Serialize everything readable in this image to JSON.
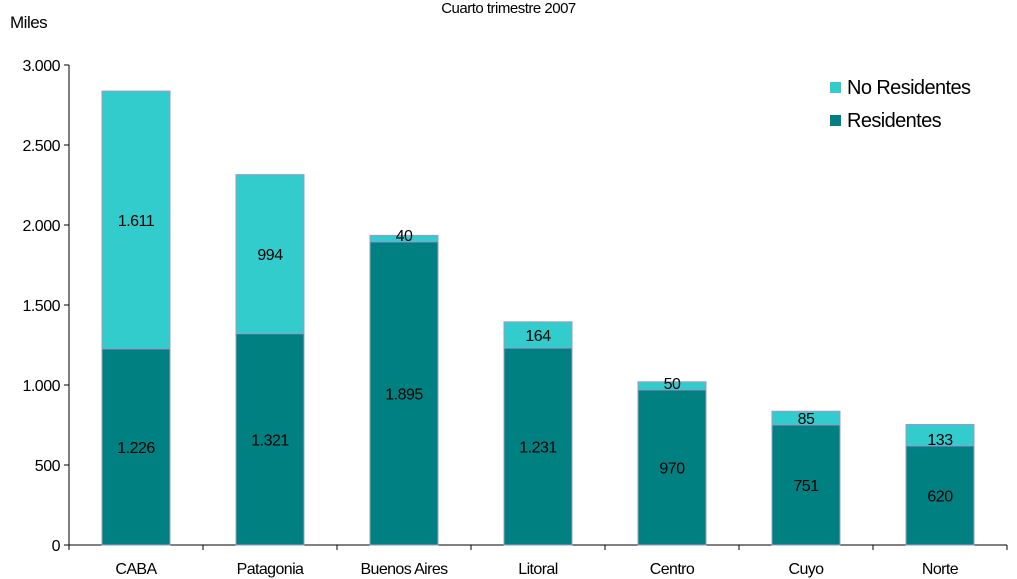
{
  "chart_data": {
    "type": "bar",
    "stacked": true,
    "title": "Cuarto trimestre 2007",
    "ylabel": "Miles",
    "xlabel": "",
    "categories": [
      "CABA",
      "Patagonia",
      "Buenos Aires",
      "Litoral",
      "Centro",
      "Cuyo",
      "Norte"
    ],
    "series": [
      {
        "name": "Residentes",
        "values": [
          1226,
          1321,
          1895,
          1231,
          970,
          751,
          620
        ],
        "labels": [
          "1.226",
          "1.321",
          "1.895",
          "1.231",
          "970",
          "751",
          "620"
        ],
        "color": "#008080"
      },
      {
        "name": "No Residentes",
        "values": [
          1611,
          994,
          40,
          164,
          50,
          85,
          133
        ],
        "labels": [
          "1.611",
          "994",
          "40",
          "164",
          "50",
          "85",
          "133"
        ],
        "color": "#33CCCC"
      }
    ],
    "yticks": [
      0,
      500,
      1000,
      1500,
      2000,
      2500,
      3000
    ],
    "ytick_labels": [
      "0",
      "500",
      "1.000",
      "1.500",
      "2.000",
      "2.500",
      "3.000"
    ],
    "ylim": [
      0,
      3000
    ],
    "legend_position": "top-right",
    "legend_order": [
      "No Residentes",
      "Residentes"
    ],
    "grid": false
  }
}
